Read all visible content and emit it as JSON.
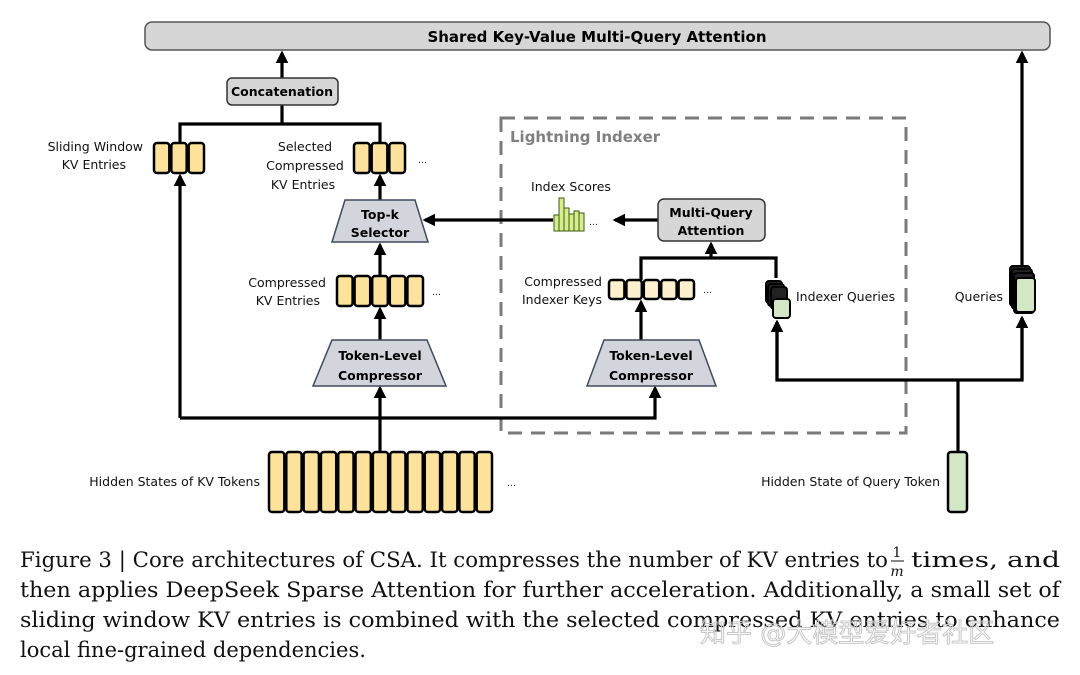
{
  "diagram": {
    "top_bar": "Shared Key-Value Multi-Query Attention",
    "concatenation": "Concatenation",
    "sliding_window": [
      "Sliding Window",
      "KV Entries"
    ],
    "selected_compressed": [
      "Selected",
      "Compressed",
      "KV Entries"
    ],
    "topk": [
      "Top-k",
      "Selector"
    ],
    "compressed_kv": [
      "Compressed",
      "KV Entries"
    ],
    "compressor_left": [
      "Token-Level",
      "Compressor"
    ],
    "compressor_right": [
      "Token-Level",
      "Compressor"
    ],
    "hidden_kv": "Hidden States of KV Tokens",
    "hidden_query": "Hidden State of Query Token",
    "lightning_indexer": "Lightning Indexer",
    "index_scores": "Index Scores",
    "mqa": [
      "Multi-Query",
      "Attention"
    ],
    "indexer_keys": [
      "Compressed",
      "Indexer Keys"
    ],
    "indexer_queries": "Indexer Queries",
    "queries": "Queries",
    "ellipsis": "…",
    "colors": {
      "kv_fill": "#FCE29B",
      "indexer_key_fill": "#FDF0CF",
      "query_fill": "#D3E6C5",
      "score_fill": "#D8EE8E",
      "box_fill": "#D6D6D6",
      "trap_fill": "#D2D5DB",
      "trap_stroke": "#3E4A5E",
      "dash": "#7A7A7A"
    }
  },
  "caption": {
    "line1_a": "Figure 3 | Core architectures of CSA. It compresses the number of KV entries to",
    "frac_num": "1",
    "frac_den": "m",
    "line1_b": "times, and",
    "line2": "then applies DeepSeek Sparse Attention for further acceleration. Additionally, a small set of",
    "line3": "sliding window KV entries is combined with the selected compressed KV entries to enhance",
    "line4": "local fine-grained dependencies."
  },
  "watermark": "知乎 @大模型爱好者社区"
}
